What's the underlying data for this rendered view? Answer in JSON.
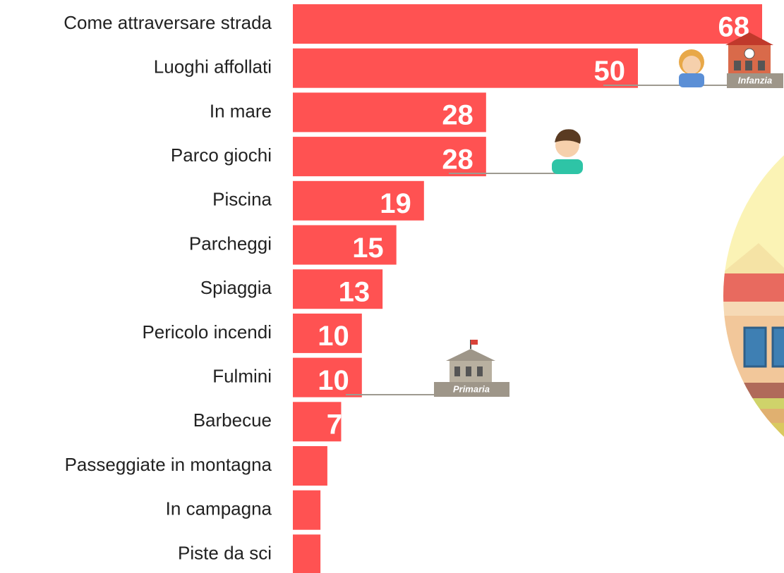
{
  "chart_data": {
    "type": "bar",
    "orientation": "horizontal",
    "categories": [
      "Come attraversare strada",
      "Luoghi affollati",
      "In mare",
      "Parco giochi",
      "Piscina",
      "Parcheggi",
      "Spiaggia",
      "Pericolo incendi",
      "Fulmini",
      "Barbecue",
      "Passeggiate in montagna",
      "In campagna",
      "Piste da sci"
    ],
    "values": [
      68,
      50,
      28,
      28,
      19,
      15,
      13,
      10,
      10,
      7,
      5,
      4,
      4
    ],
    "color": "#ff5252",
    "annotations": [
      "Infanzia",
      "Primaria"
    ]
  }
}
